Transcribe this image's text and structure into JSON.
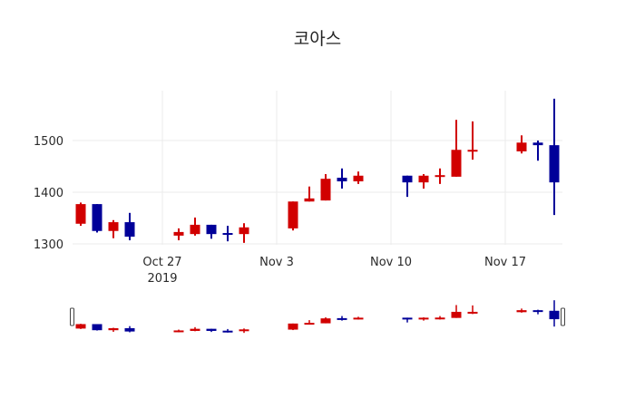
{
  "chart_data": {
    "type": "candlestick",
    "title": "코아스",
    "xlabel": "",
    "ylabel": "",
    "ylim": [
      1280,
      1590
    ],
    "y_ticks": [
      1300,
      1400,
      1500
    ],
    "x_ticks": [
      {
        "label": "Oct 27",
        "sub": "2019",
        "date": "2019-10-27"
      },
      {
        "label": "Nov 3",
        "sub": "",
        "date": "2019-11-03"
      },
      {
        "label": "Nov 10",
        "sub": "",
        "date": "2019-11-10"
      },
      {
        "label": "Nov 17",
        "sub": "",
        "date": "2019-11-17"
      }
    ],
    "grid": true,
    "increasing_color": "#d10000",
    "decreasing_color": "#000099",
    "rangeslider": true,
    "series": [
      {
        "date": "2019-10-22",
        "open": 1339,
        "high": 1380,
        "low": 1335,
        "close": 1377
      },
      {
        "date": "2019-10-23",
        "open": 1377,
        "high": 1377,
        "low": 1322,
        "close": 1325
      },
      {
        "date": "2019-10-24",
        "open": 1325,
        "high": 1346,
        "low": 1311,
        "close": 1342
      },
      {
        "date": "2019-10-25",
        "open": 1342,
        "high": 1360,
        "low": 1307,
        "close": 1314
      },
      {
        "date": "2019-10-28",
        "open": 1316,
        "high": 1330,
        "low": 1307,
        "close": 1323
      },
      {
        "date": "2019-10-29",
        "open": 1319,
        "high": 1351,
        "low": 1316,
        "close": 1337
      },
      {
        "date": "2019-10-30",
        "open": 1337,
        "high": 1337,
        "low": 1310,
        "close": 1319
      },
      {
        "date": "2019-10-31",
        "open": 1321,
        "high": 1335,
        "low": 1305,
        "close": 1318
      },
      {
        "date": "2019-11-01",
        "open": 1319,
        "high": 1340,
        "low": 1302,
        "close": 1332
      },
      {
        "date": "2019-11-04",
        "open": 1330,
        "high": 1382,
        "low": 1326,
        "close": 1382
      },
      {
        "date": "2019-11-05",
        "open": 1382,
        "high": 1411,
        "low": 1382,
        "close": 1388
      },
      {
        "date": "2019-11-06",
        "open": 1384,
        "high": 1435,
        "low": 1384,
        "close": 1426
      },
      {
        "date": "2019-11-07",
        "open": 1428,
        "high": 1446,
        "low": 1407,
        "close": 1421
      },
      {
        "date": "2019-11-08",
        "open": 1421,
        "high": 1440,
        "low": 1416,
        "close": 1432
      },
      {
        "date": "2019-11-11",
        "open": 1432,
        "high": 1432,
        "low": 1391,
        "close": 1419
      },
      {
        "date": "2019-11-12",
        "open": 1419,
        "high": 1435,
        "low": 1407,
        "close": 1432
      },
      {
        "date": "2019-11-13",
        "open": 1430,
        "high": 1446,
        "low": 1416,
        "close": 1433
      },
      {
        "date": "2019-11-14",
        "open": 1430,
        "high": 1540,
        "low": 1430,
        "close": 1482
      },
      {
        "date": "2019-11-15",
        "open": 1481,
        "high": 1537,
        "low": 1463,
        "close": 1482
      },
      {
        "date": "2019-11-18",
        "open": 1479,
        "high": 1510,
        "low": 1475,
        "close": 1496
      },
      {
        "date": "2019-11-19",
        "open": 1496,
        "high": 1500,
        "low": 1461,
        "close": 1491
      },
      {
        "date": "2019-11-20",
        "open": 1491,
        "high": 1581,
        "low": 1356,
        "close": 1419
      }
    ]
  },
  "labels": {
    "title": "코아스",
    "y_tick_labels": [
      "1300",
      "1400",
      "1500"
    ],
    "x_tick_labels": [
      "Oct 27",
      "Nov 3",
      "Nov 10",
      "Nov 17"
    ],
    "x_year_label": "2019"
  }
}
